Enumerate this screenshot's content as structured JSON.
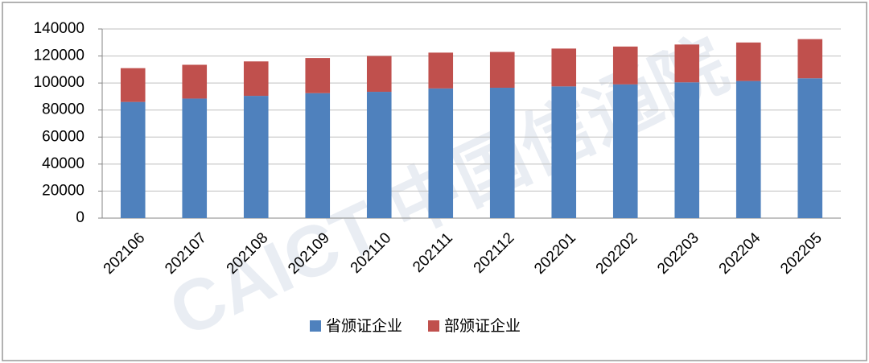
{
  "chart_data": {
    "type": "stacked_bar",
    "watermark": "CAICT 中国信通院",
    "categories": [
      "202106",
      "202107",
      "202108",
      "202109",
      "202110",
      "202111",
      "202112",
      "202201",
      "202202",
      "202203",
      "202204",
      "202205"
    ],
    "series": [
      {
        "name": "省颁证企业",
        "color": "#4f81bd",
        "values": [
          86000,
          88500,
          90500,
          92500,
          93500,
          96000,
          96500,
          97500,
          99000,
          100500,
          101500,
          103500
        ]
      },
      {
        "name": "部颁证企业",
        "color": "#c0504d",
        "values": [
          25000,
          25000,
          25500,
          26000,
          26500,
          26500,
          26500,
          28000,
          28000,
          28000,
          28500,
          29000
        ]
      }
    ],
    "ylim": [
      0,
      140000
    ],
    "yticks": [
      0,
      20000,
      40000,
      60000,
      80000,
      100000,
      120000,
      140000
    ],
    "grid": true,
    "legend": "bottom"
  }
}
